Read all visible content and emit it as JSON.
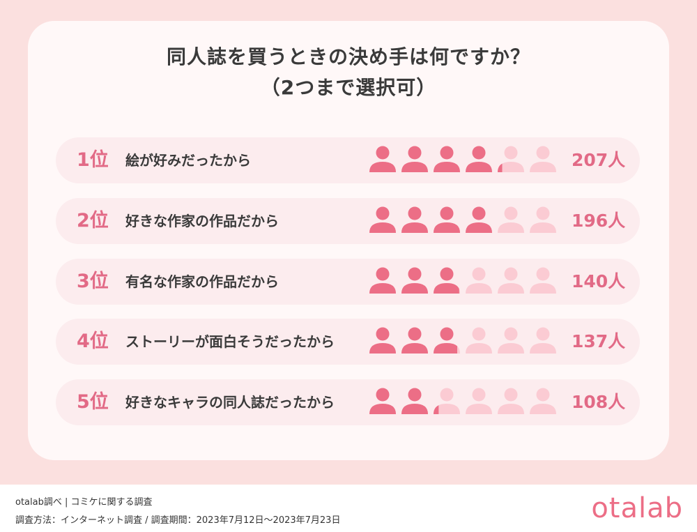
{
  "title_line1": "同人誌を買うときの決め手は何ですか？",
  "title_line2": "（2つまで選択可）",
  "colors": {
    "icon_filled": "#ec6e86",
    "icon_empty": "#fbcbd3",
    "accent": "#e26a86"
  },
  "icon_name": "person-icon",
  "chart_data": {
    "type": "bar",
    "categories": [
      "絵が好みだったから",
      "好きな作家の作品だから",
      "有名な作家の作品だから",
      "ストーリーが面白そうだったから",
      "好きなキャラの同人誌だったから"
    ],
    "values": [
      207,
      196,
      140,
      137,
      108
    ],
    "ranks": [
      "1位",
      "2位",
      "3位",
      "4位",
      "5位"
    ],
    "value_labels": [
      "207人",
      "196人",
      "140人",
      "137人",
      "108人"
    ],
    "icon_units": 50,
    "icon_total": 6
  },
  "footer": {
    "line1": "otalab調べ | コミケに関する調査",
    "line2": "調査方法：インターネット調査 / 調査期間：2023年7月12日〜2023年7月23日",
    "logo": "otalab"
  }
}
